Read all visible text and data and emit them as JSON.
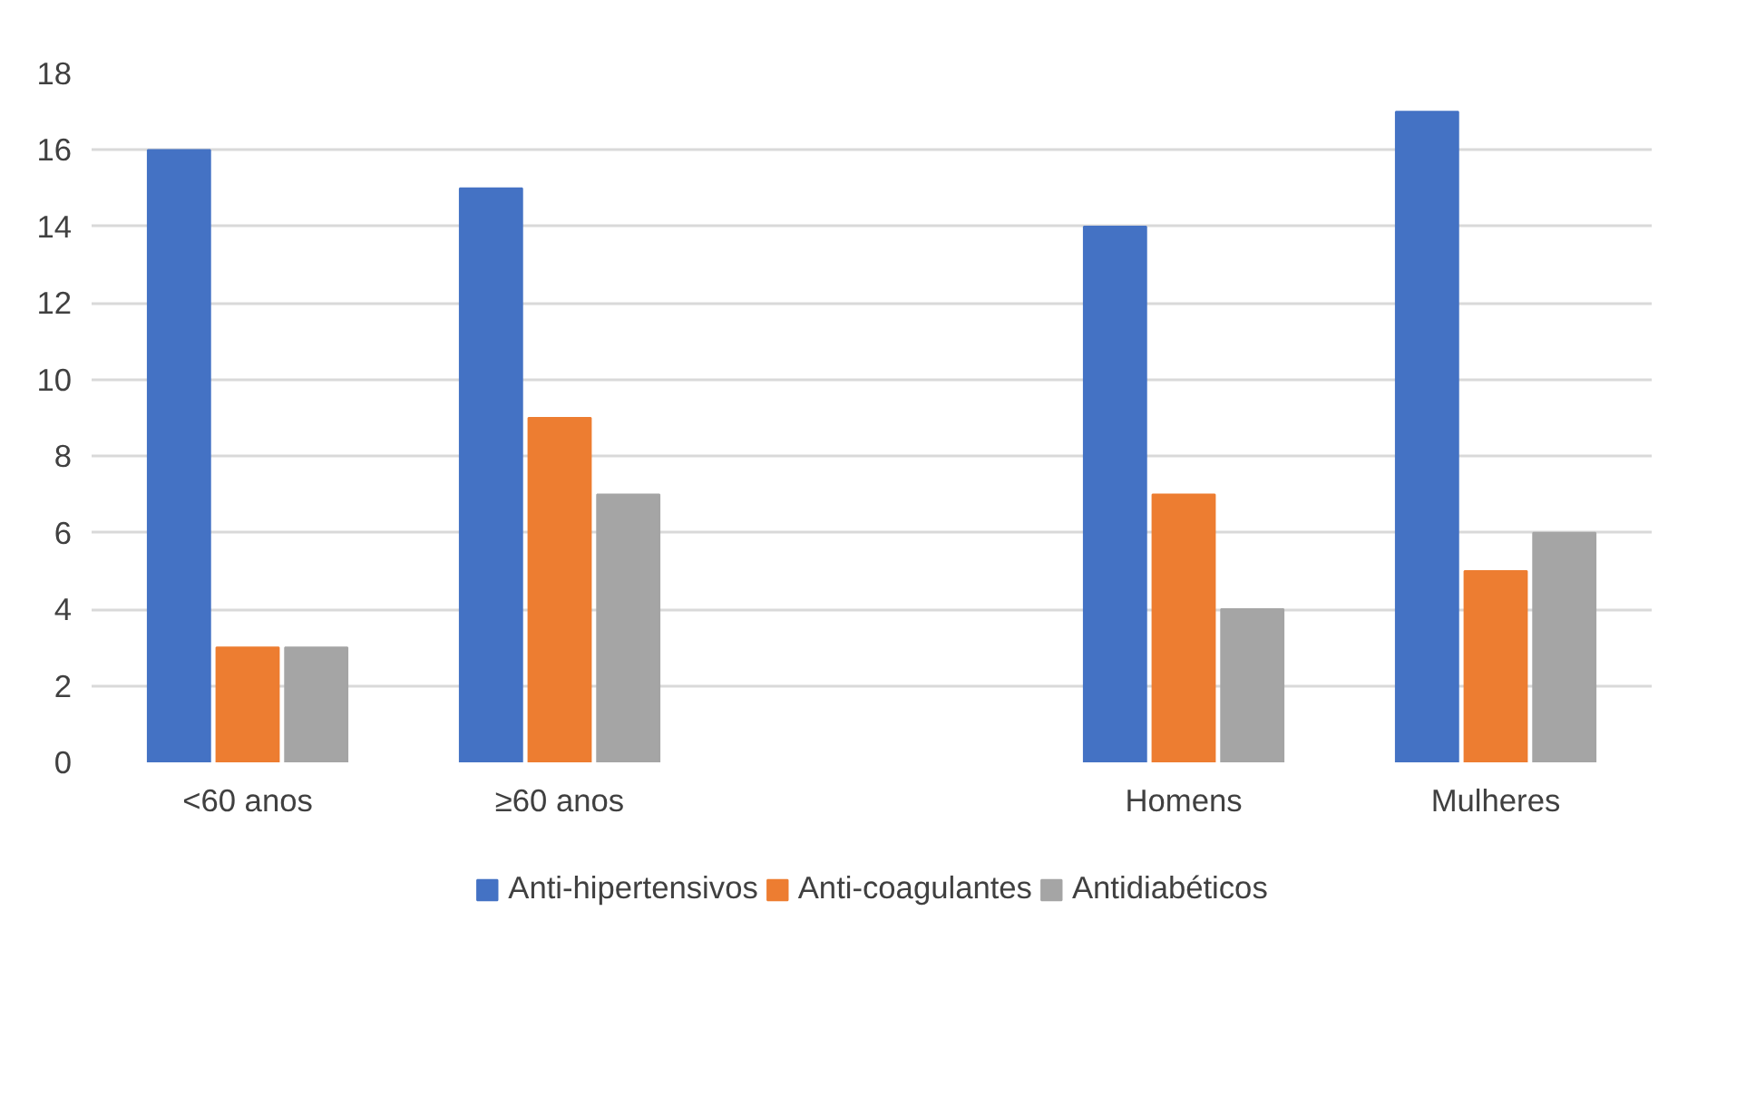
{
  "chart_data": {
    "type": "bar",
    "categories": [
      "<60 anos",
      "≥60 anos",
      null,
      "Homens",
      "Mulheres"
    ],
    "series": [
      {
        "name": "Anti-hipertensivos",
        "color": "#4472c4",
        "values": [
          16,
          15,
          null,
          14,
          17
        ]
      },
      {
        "name": "Anti-coagulantes",
        "color": "#ed7d31",
        "values": [
          3,
          9,
          null,
          7,
          5
        ]
      },
      {
        "name": "Antidiabéticos",
        "color": "#a5a5a5",
        "values": [
          3,
          7,
          null,
          4,
          6
        ]
      }
    ],
    "ylim": [
      0,
      18
    ],
    "yticks": [
      0,
      2,
      4,
      6,
      8,
      10,
      12,
      14,
      16,
      18
    ],
    "grid": "y",
    "legend": "bottom"
  }
}
